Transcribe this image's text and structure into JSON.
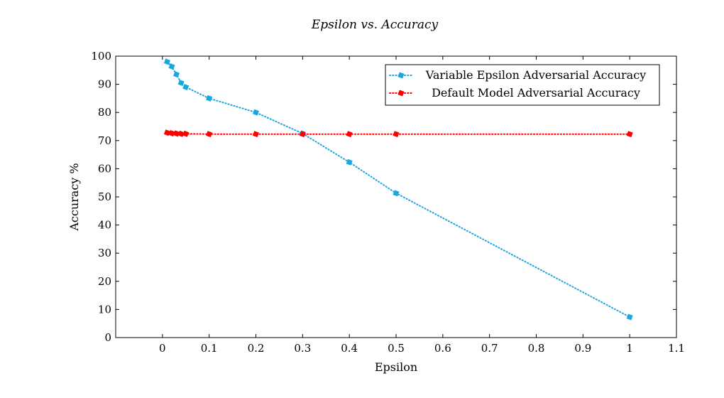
{
  "chart_data": {
    "type": "line",
    "title": "Epsilon vs. Accuracy",
    "xlabel": "Epsilon",
    "ylabel": "Accuracy %",
    "xlim": [
      -0.1,
      1.1
    ],
    "ylim": [
      0,
      100
    ],
    "xticks": [
      0,
      0.1,
      0.2,
      0.3,
      0.4,
      0.5,
      0.6,
      0.7,
      0.8,
      0.9,
      1,
      1.1
    ],
    "xtick_labels": [
      "0",
      "0.1",
      "0.2",
      "0.3",
      "0.4",
      "0.5",
      "0.6",
      "0.7",
      "0.8",
      "0.9",
      "1",
      "1.1"
    ],
    "yticks": [
      0,
      10,
      20,
      30,
      40,
      50,
      60,
      70,
      80,
      90,
      100
    ],
    "ytick_labels": [
      "0",
      "10",
      "20",
      "30",
      "40",
      "50",
      "60",
      "70",
      "80",
      "90",
      "100"
    ],
    "grid": false,
    "legend_position": "top-right",
    "series": [
      {
        "name": "Variable Epsilon Adversarial Accuracy",
        "color": "#1aa6e0",
        "line_style": "dotted",
        "marker": "square",
        "x": [
          0.01,
          0.02,
          0.03,
          0.04,
          0.05,
          0.1,
          0.2,
          0.3,
          0.4,
          0.5,
          1.0
        ],
        "y": [
          98,
          96.3,
          93.5,
          90.5,
          89,
          85,
          80,
          72.5,
          62.3,
          51.3,
          7.3
        ]
      },
      {
        "name": "Default Model Adversarial Accuracy",
        "color": "#ff0000",
        "line_style": "dotted",
        "marker": "square",
        "x": [
          0.01,
          0.02,
          0.03,
          0.04,
          0.05,
          0.1,
          0.2,
          0.3,
          0.4,
          0.5,
          1.0
        ],
        "y": [
          72.8,
          72.6,
          72.5,
          72.4,
          72.4,
          72.3,
          72.3,
          72.3,
          72.3,
          72.3,
          72.3
        ]
      }
    ]
  }
}
